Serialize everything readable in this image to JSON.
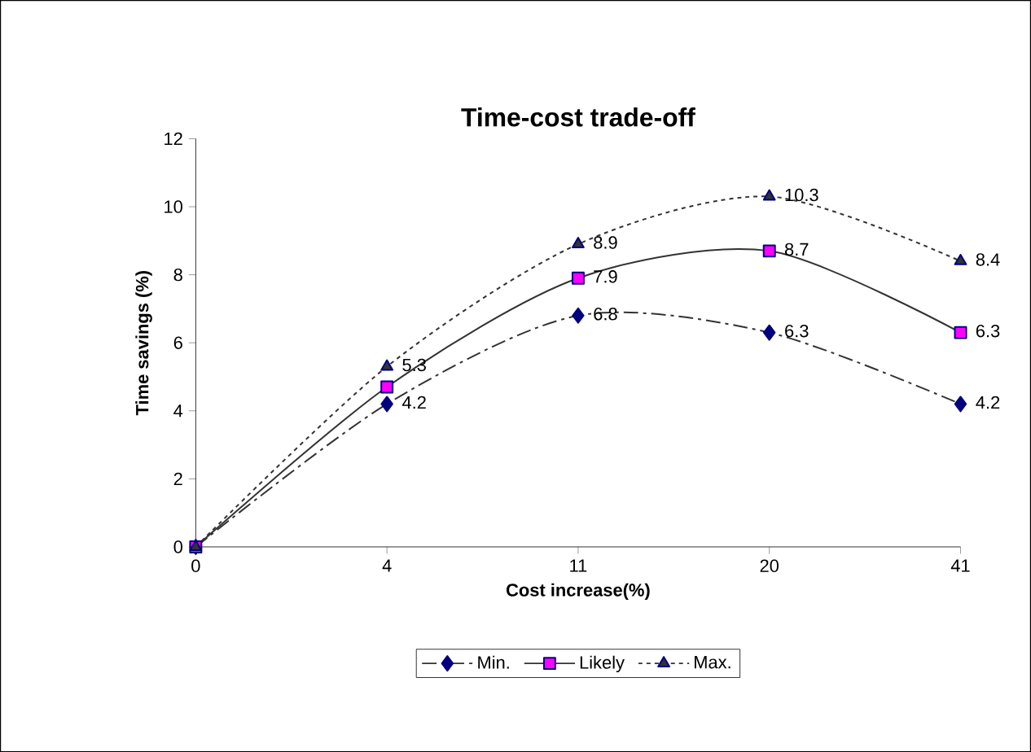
{
  "chart_data": {
    "type": "line",
    "title": "Time-cost trade-off",
    "xlabel": "Cost  increase(%)",
    "ylabel": "Time savings (%)",
    "categories": [
      "0",
      "4",
      "11",
      "20",
      "41"
    ],
    "series": [
      {
        "name": "Min.",
        "color": "#000080",
        "values": [
          0,
          4.2,
          6.8,
          6.3,
          4.2
        ],
        "marker": "diamond",
        "line_style": "dashed",
        "value_labels": [
          null,
          "4.2",
          "6.8",
          "6.3",
          "4.2"
        ]
      },
      {
        "name": "Likely",
        "color": "#ff00ff",
        "values": [
          0,
          4.7,
          7.9,
          8.7,
          6.3
        ],
        "marker": "square",
        "line_style": "solid",
        "value_labels": [
          null,
          null,
          "7.9",
          "8.7",
          "6.3"
        ]
      },
      {
        "name": "Max.",
        "color": "#333333",
        "values": [
          0,
          5.3,
          8.9,
          10.3,
          8.4
        ],
        "marker": "triangle",
        "line_style": "dotted",
        "value_labels": [
          null,
          "5.3",
          "8.9",
          "10.3",
          "8.4"
        ]
      }
    ],
    "ylim": [
      0,
      12
    ],
    "yticks": [
      0,
      2,
      4,
      6,
      8,
      10,
      12
    ],
    "grid": false,
    "legend": "bottom"
  }
}
